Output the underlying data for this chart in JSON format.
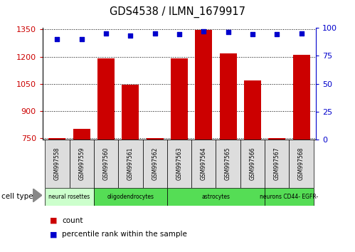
{
  "title": "GDS4538 / ILMN_1679917",
  "samples": [
    "GSM997558",
    "GSM997559",
    "GSM997560",
    "GSM997561",
    "GSM997562",
    "GSM997563",
    "GSM997564",
    "GSM997565",
    "GSM997566",
    "GSM997567",
    "GSM997568"
  ],
  "counts": [
    751,
    800,
    1192,
    1044,
    751,
    1191,
    1347,
    1220,
    1068,
    751,
    1212
  ],
  "percentiles": [
    90,
    90,
    95,
    93,
    95,
    94,
    97,
    96,
    94,
    94,
    95
  ],
  "cell_type_data": [
    {
      "label": "neural rosettes",
      "start": 0,
      "end": 2,
      "color": "#ccffcc"
    },
    {
      "label": "oligodendrocytes",
      "start": 2,
      "end": 5,
      "color": "#55dd55"
    },
    {
      "label": "astrocytes",
      "start": 5,
      "end": 9,
      "color": "#55dd55"
    },
    {
      "label": "neurons CD44- EGFR-",
      "start": 9,
      "end": 11,
      "color": "#55dd55"
    }
  ],
  "ylim_left": [
    740,
    1360
  ],
  "ylim_right": [
    0,
    100
  ],
  "yticks_left": [
    750,
    900,
    1050,
    1200,
    1350
  ],
  "yticks_right": [
    0,
    25,
    50,
    75,
    100
  ],
  "bar_color": "#cc0000",
  "dot_color": "#0000cc",
  "bg_color": "#ffffff"
}
